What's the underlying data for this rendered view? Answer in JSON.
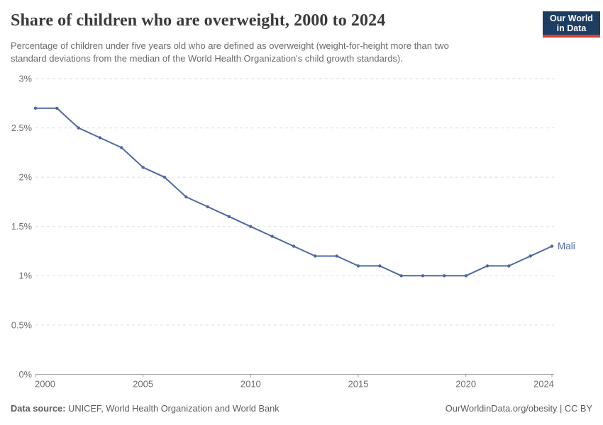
{
  "header": {
    "title": "Share of children who are overweight, 2000 to 2024",
    "subtitle": "Percentage of children under five years old who are defined as overweight (weight-for-height more than two standard deviations from the median of the World Health Organization's child growth standards).",
    "logo": {
      "line1": "Our World",
      "line2": "in Data",
      "bg_color": "#1d3d63",
      "accent_color": "#dc3f34"
    }
  },
  "chart_data": {
    "type": "line",
    "title": "Share of children who are overweight, 2000 to 2024",
    "x": [
      2000,
      2001,
      2002,
      2003,
      2004,
      2005,
      2006,
      2007,
      2008,
      2009,
      2010,
      2011,
      2012,
      2013,
      2014,
      2015,
      2016,
      2017,
      2018,
      2019,
      2020,
      2021,
      2022,
      2023,
      2024
    ],
    "series": [
      {
        "name": "Mali",
        "color": "#4d68a3",
        "values": [
          2.7,
          2.7,
          2.5,
          2.4,
          2.3,
          2.1,
          2.0,
          1.8,
          1.7,
          1.6,
          1.5,
          1.4,
          1.3,
          1.2,
          1.2,
          1.1,
          1.1,
          1.0,
          1.0,
          1.0,
          1.0,
          1.1,
          1.1,
          1.2,
          1.3
        ]
      }
    ],
    "xlim": [
      2000,
      2024
    ],
    "ylim": [
      0,
      3
    ],
    "x_ticks": [
      2000,
      2005,
      2010,
      2015,
      2020,
      2024
    ],
    "y_ticks": [
      {
        "value": 0,
        "label": "0%"
      },
      {
        "value": 0.5,
        "label": "0.5%"
      },
      {
        "value": 1,
        "label": "1%"
      },
      {
        "value": 1.5,
        "label": "1.5%"
      },
      {
        "value": 2,
        "label": "2%"
      },
      {
        "value": 2.5,
        "label": "2.5%"
      },
      {
        "value": 3,
        "label": "3%"
      }
    ],
    "grid": "horizontal-dashed",
    "legend_position": "end-of-line-label",
    "colors": {
      "gridline": "#dcdcdc",
      "axis": "#a3a3a3",
      "tick_label": "#6e6e6e"
    }
  },
  "footer": {
    "source_label": "Data source:",
    "source_text": " UNICEF, World Health Organization and World Bank",
    "attribution": "OurWorldinData.org/obesity | CC BY"
  }
}
